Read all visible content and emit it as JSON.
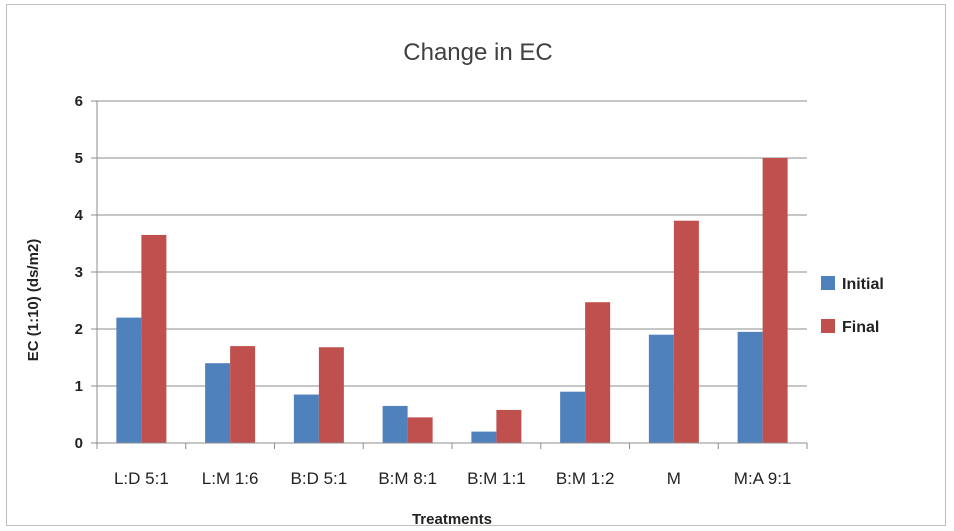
{
  "chart_data": {
    "type": "bar",
    "title": "Change in EC",
    "xlabel": "Treatments",
    "ylabel": "EC (1:10) (ds/m2)",
    "ylim": [
      0,
      6
    ],
    "yticks": [
      0,
      1,
      2,
      3,
      4,
      5,
      6
    ],
    "grid": true,
    "legend_position": "right",
    "categories": [
      "L:D 5:1",
      "L:M 1:6",
      "B:D 5:1",
      "B:M 8:1",
      "B:M 1:1",
      "B:M 1:2",
      "M",
      "M:A 9:1"
    ],
    "series": [
      {
        "name": "Initial",
        "color": "#4f81bd",
        "values": [
          2.2,
          1.4,
          0.85,
          0.65,
          0.2,
          0.9,
          1.9,
          1.95
        ]
      },
      {
        "name": "Final",
        "color": "#c0504d",
        "values": [
          3.65,
          1.7,
          1.68,
          0.45,
          0.58,
          2.47,
          3.9,
          5.0
        ]
      }
    ]
  }
}
